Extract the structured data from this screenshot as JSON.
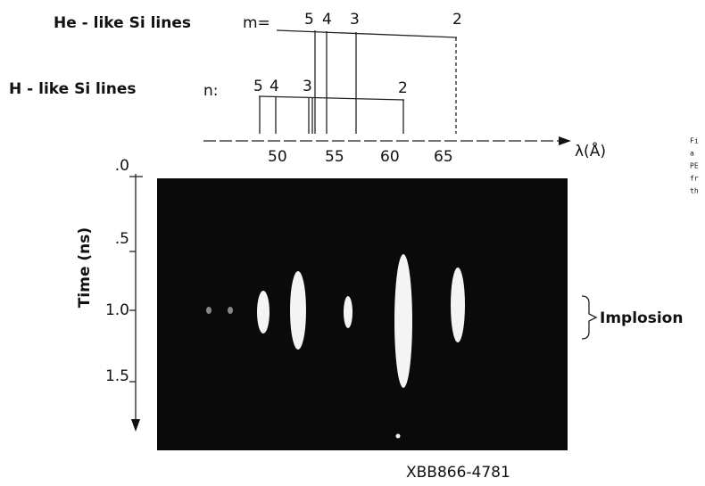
{
  "figure": {
    "he_like": {
      "label": "He - like Si lines",
      "index_label": "m=",
      "lines": [
        "5",
        "4",
        "3",
        "2"
      ]
    },
    "h_like": {
      "label": "H - like Si lines",
      "index_label": "n:",
      "lines": [
        "5",
        "4",
        "3",
        "2"
      ]
    },
    "wavelength_axis": {
      "label": "λ(Å)",
      "ticks": [
        "50",
        "55",
        "60",
        "65"
      ]
    },
    "time_axis": {
      "label": "Time (ns)",
      "ticks": [
        ".0",
        ".5",
        "1.0",
        "1.5"
      ]
    },
    "annotation": "Implosion",
    "figure_id": "XBB866-4781",
    "caption_fragments": [
      "Fi",
      "a",
      "PE",
      "fr",
      "th"
    ]
  }
}
